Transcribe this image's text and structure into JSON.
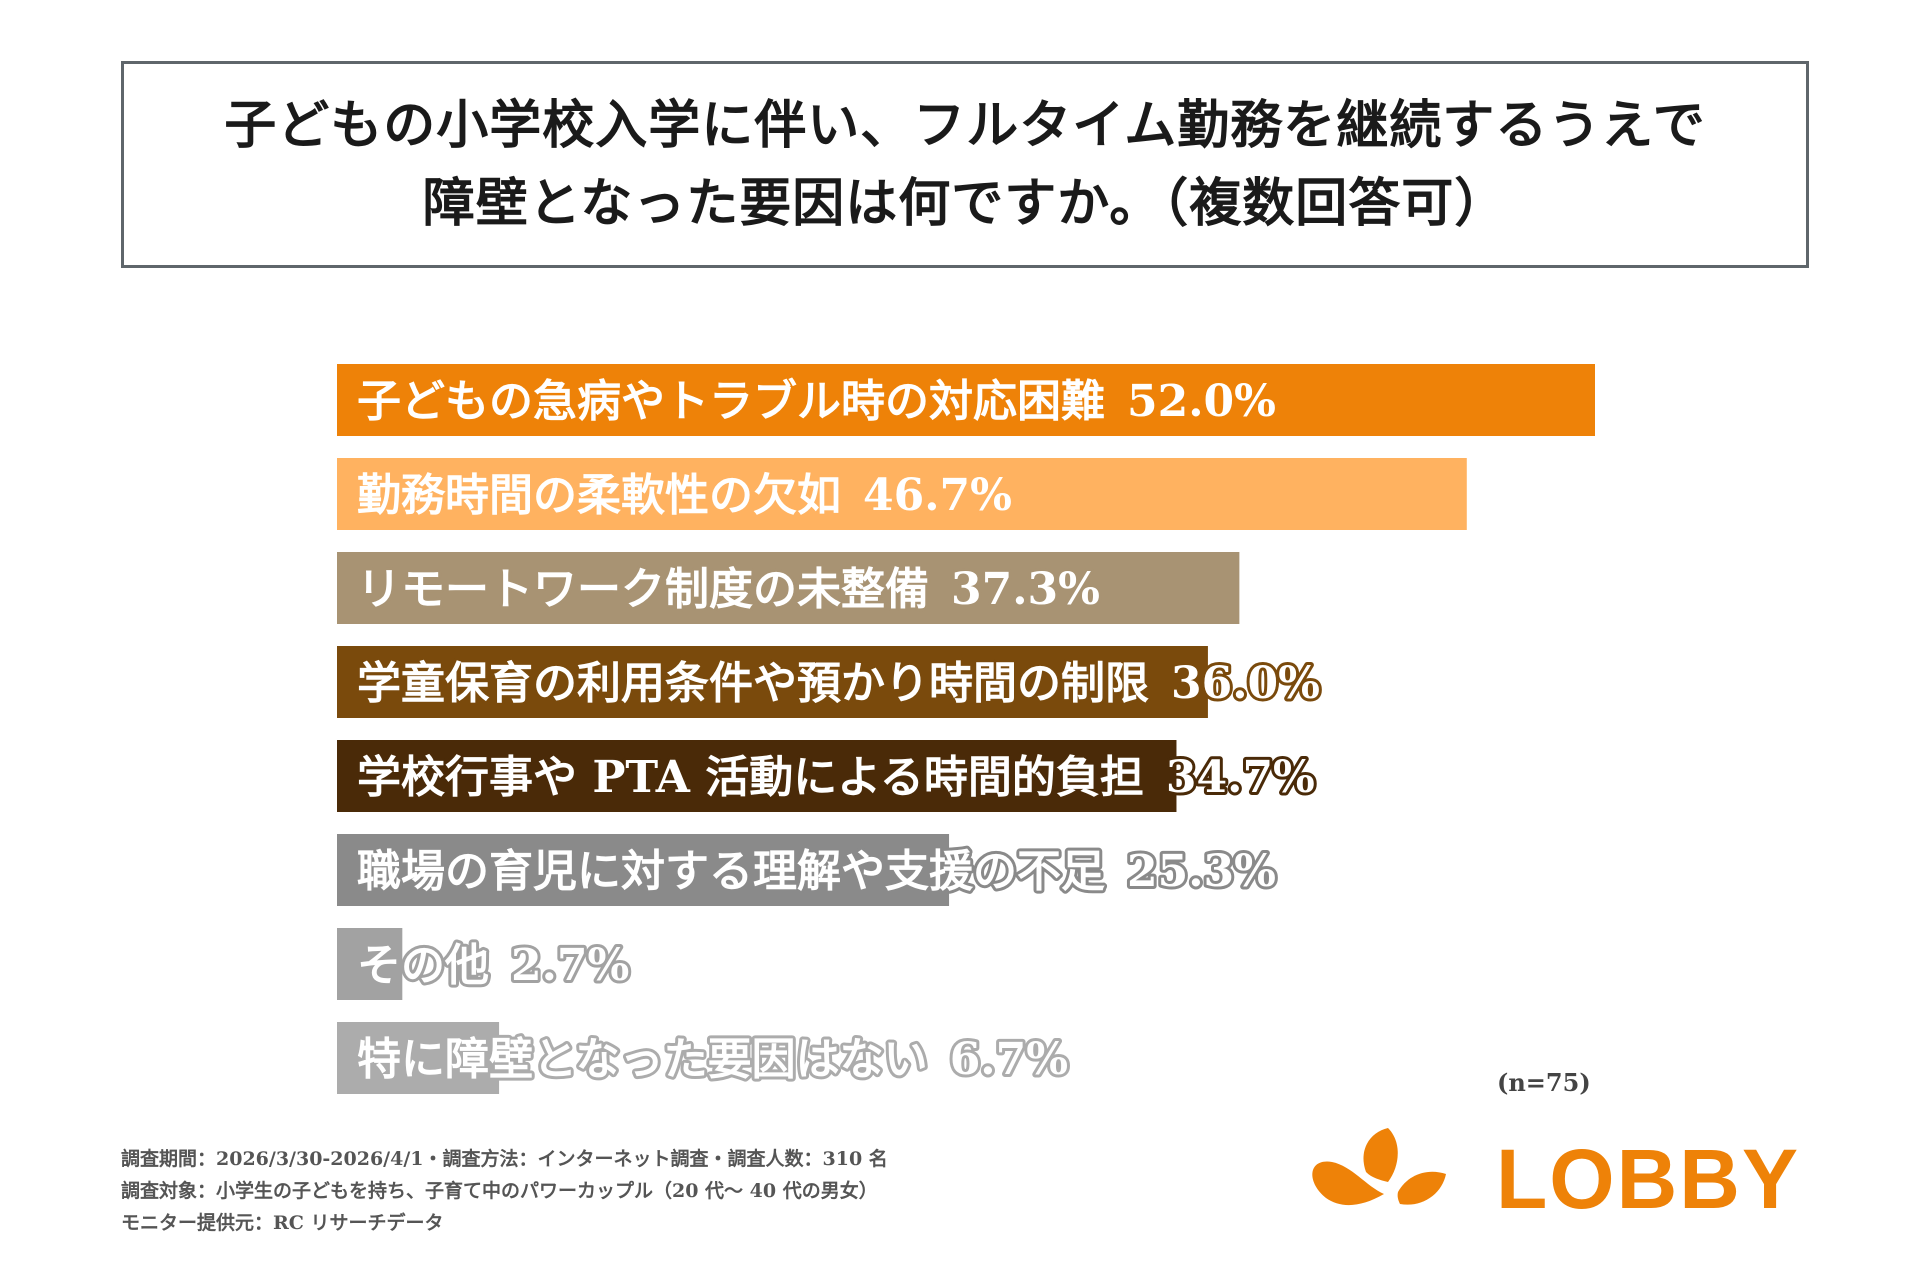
{
  "title": {
    "line1": "子どもの小学校入学に伴い、フルタイム勤務を継続するうえで",
    "line2": "障壁となった要因は何ですか。（複数回答可）"
  },
  "chart_data": {
    "type": "bar",
    "orientation": "horizontal",
    "categories": [
      "子どもの急病やトラブル時の対応困難",
      "勤務時間の柔軟性の欠如",
      "リモートワーク制度の未整備",
      "学童保育の利用条件や預かり時間の制限",
      "学校行事や PTA 活動による時間的負担",
      "職場の育児に対する理解や支援の不足",
      "その他",
      "特に障壁となった要因はない"
    ],
    "values": [
      52.0,
      46.7,
      37.3,
      36.0,
      34.7,
      25.3,
      2.7,
      6.7
    ],
    "value_labels": [
      "52.0%",
      "46.7%",
      "37.3%",
      "36.0%",
      "34.7%",
      "25.3%",
      "2.7%",
      "6.7%"
    ],
    "colors": [
      "#ee8208",
      "#ffb260",
      "#a89373",
      "#7a4a0c",
      "#4a2a08",
      "#8a8a8a",
      "#a2a2a2",
      "#acacac"
    ],
    "xlim": [
      0,
      52.0
    ],
    "title": "子どもの小学校入学に伴い、フルタイム勤務を継続するうえで障壁となった要因は何ですか。（複数回答可）"
  },
  "sample_note": "(n=75)",
  "footnotes": [
    "調査期間：2026/3/30-2026/4/1・調査方法：インターネット調査・調査人数：310 名",
    "調査対象：小学生の子どもを持ち、子育て中のパワーカップル（20 代～ 40 代の男女）",
    "モニター提供元：RC リサーチデータ"
  ],
  "logo": {
    "text": "LOBBY",
    "color": "#ee8208"
  }
}
